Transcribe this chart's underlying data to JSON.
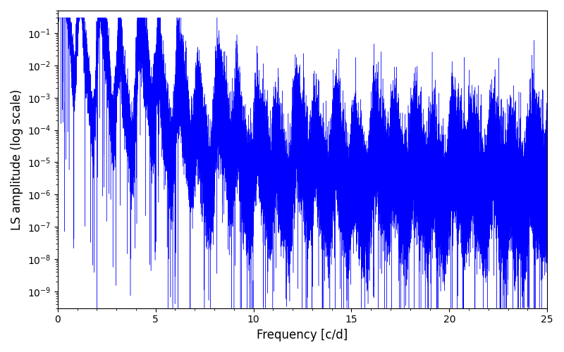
{
  "xlabel": "Frequency [c/d]",
  "ylabel": "LS amplitude (log scale)",
  "xmin": 0,
  "xmax": 25,
  "ymin": 3e-10,
  "ymax": 0.5,
  "line_color": "#0000ff",
  "line_width": 0.5,
  "figsize": [
    8.0,
    5.0
  ],
  "dpi": 100
}
